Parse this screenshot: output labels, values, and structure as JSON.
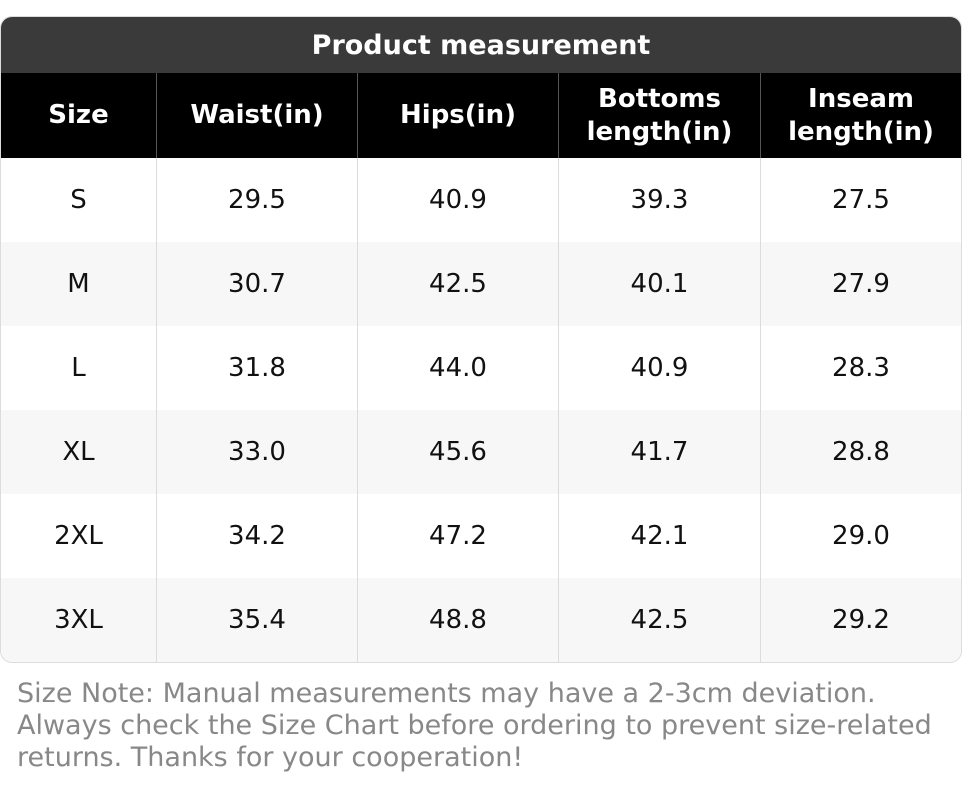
{
  "table": {
    "title": "Product measurement",
    "headers": [
      "Size",
      "Waist(in)",
      "Hips(in)",
      "Bottoms length(in)",
      "Inseam length(in)"
    ],
    "rows": [
      [
        "S",
        "29.5",
        "40.9",
        "39.3",
        "27.5"
      ],
      [
        "M",
        "30.7",
        "42.5",
        "40.1",
        "27.9"
      ],
      [
        "L",
        "31.8",
        "44.0",
        "40.9",
        "28.3"
      ],
      [
        "XL",
        "33.0",
        "45.6",
        "41.7",
        "28.8"
      ],
      [
        "2XL",
        "34.2",
        "47.2",
        "42.1",
        "29.0"
      ],
      [
        "3XL",
        "35.4",
        "48.8",
        "42.5",
        "29.2"
      ]
    ]
  },
  "note": "Size Note: Manual measurements may have a 2-3cm deviation. Always check the Size Chart before ordering to prevent size-related returns. Thanks for your cooperation!"
}
